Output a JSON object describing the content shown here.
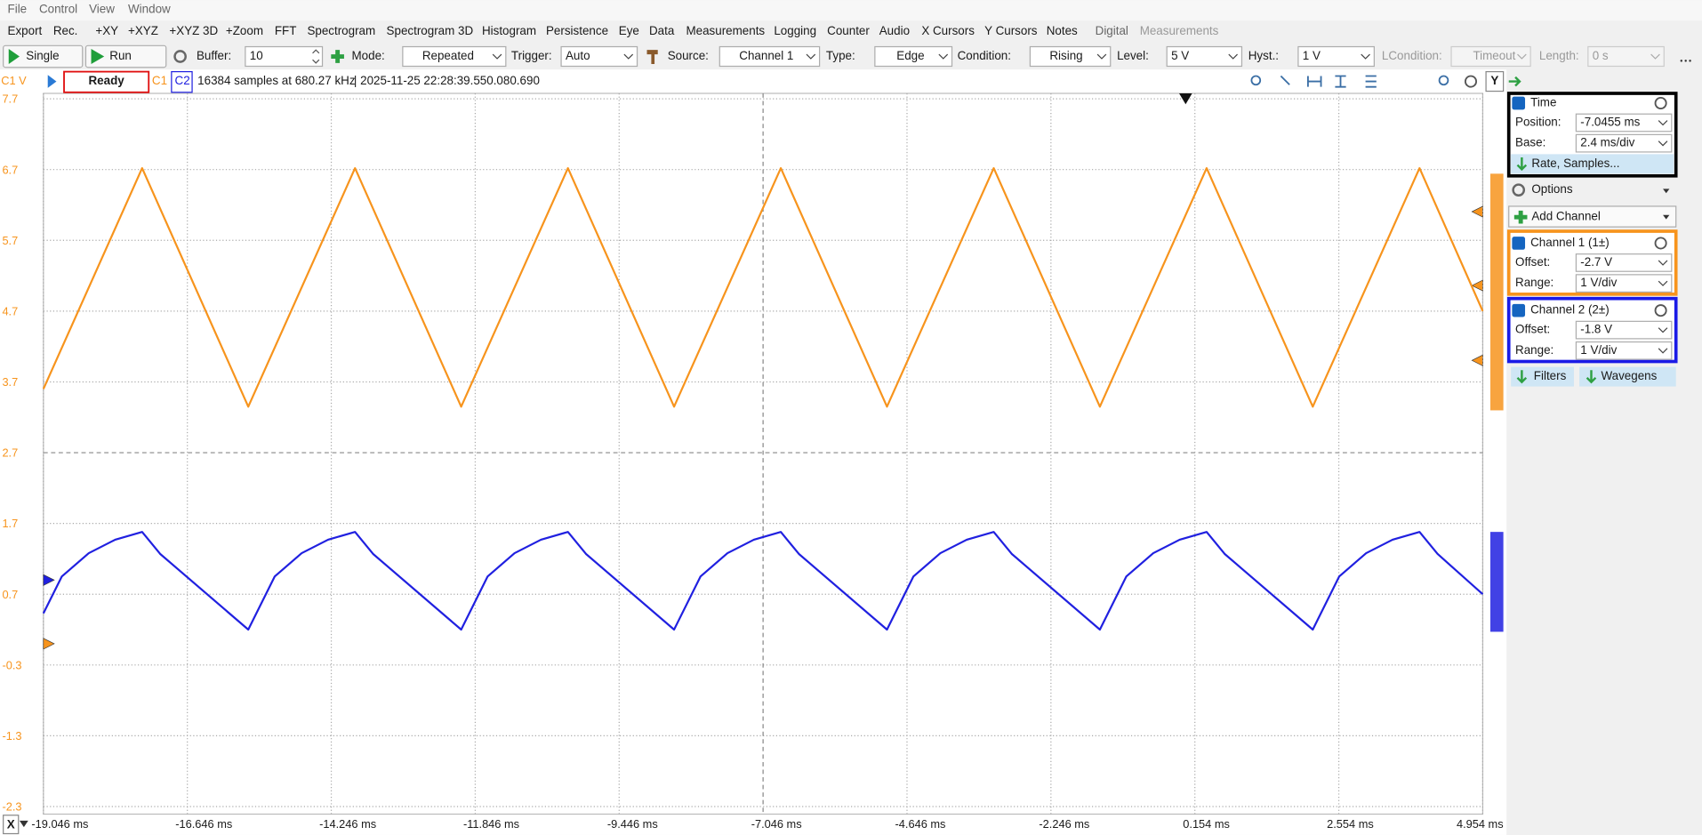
{
  "menu": [
    "File",
    "Control",
    "View",
    "Window"
  ],
  "tools": [
    "Export",
    "Rec.",
    "+XY",
    "+XYZ",
    "+XYZ 3D",
    "+Zoom",
    "FFT",
    "Spectrogram",
    "Spectrogram 3D",
    "Histogram",
    "Persistence",
    "Eye",
    "Data",
    "Measurements",
    "Logging",
    "Counter",
    "Audio",
    "X Cursors",
    "Y Cursors",
    "Notes",
    "Digital",
    "Measurements"
  ],
  "controls": {
    "single": "Single",
    "run": "Run",
    "buffer_label": "Buffer:",
    "buffer": "10",
    "mode_label": "Mode:",
    "mode": "Repeated",
    "trigger_label": "Trigger:",
    "trigger": "Auto",
    "source_label": "Source:",
    "source": "Channel 1",
    "type_label": "Type:",
    "type": "Edge",
    "condition_label": "Condition:",
    "condition": "Rising",
    "level_label": "Level:",
    "level": "5 V",
    "hyst_label": "Hyst.:",
    "hyst": "1 V",
    "lcondition_label": "LCondition:",
    "lcondition": "Timeout",
    "length_label": "Length:",
    "length": "0 s"
  },
  "status": {
    "state": "Ready",
    "samples": "16384 samples at 680.27 kHz",
    "timestamp": "| 2025-11-25 22:28:39.550.080.690",
    "y_button": "Y",
    "x_button": "X"
  },
  "panel": {
    "time": {
      "title": "Time",
      "position_label": "Position:",
      "position": "-7.0455 ms",
      "base_label": "Base:",
      "base": "2.4 ms/div",
      "rate": "Rate, Samples..."
    },
    "options": "Options",
    "add_channel": "Add Channel",
    "channels": [
      {
        "title": "Channel 1 (1±)",
        "offset_label": "Offset:",
        "offset": "-2.7 V",
        "range_label": "Range:",
        "range": "1 V/div"
      },
      {
        "title": "Channel 2 (2±)",
        "offset_label": "Offset:",
        "offset": "-1.8 V",
        "range_label": "Range:",
        "range": "1 V/div"
      }
    ],
    "filters": "Filters",
    "wavegens": "Wavegens"
  },
  "chart_data": {
    "type": "line",
    "y_label": "C1 V",
    "xlim": [
      -19.046,
      4.954
    ],
    "xticks": [
      {
        "value": -19.046,
        "label": "-19.046 ms"
      },
      {
        "value": -16.646,
        "label": "-16.646 ms"
      },
      {
        "value": -14.246,
        "label": "-14.246 ms"
      },
      {
        "value": -11.846,
        "label": "-11.846 ms"
      },
      {
        "value": -9.446,
        "label": "-9.446 ms"
      },
      {
        "value": -7.046,
        "label": "-7.046 ms"
      },
      {
        "value": -4.646,
        "label": "-4.646 ms"
      },
      {
        "value": -2.246,
        "label": "-2.246 ms"
      },
      {
        "value": 0.154,
        "label": "0.154 ms"
      },
      {
        "value": 2.554,
        "label": "2.554 ms"
      },
      {
        "value": 4.954,
        "label": "4.954 ms"
      }
    ],
    "ylim": [
      -2.3,
      7.7
    ],
    "yticks": [
      7.7,
      6.7,
      5.7,
      4.7,
      3.7,
      2.7,
      1.7,
      0.7,
      -0.3,
      -1.3,
      -2.3
    ],
    "y2lim": [
      -3.2,
      6.8
    ],
    "grid": true,
    "series": [
      {
        "name": "C1",
        "color": "#f7941d",
        "x": [
          -19.046,
          -17.4,
          -15.63,
          -13.85,
          -12.08,
          -10.3,
          -8.53,
          -6.75,
          -4.98,
          -3.2,
          -1.43,
          0.35,
          2.12,
          3.9,
          4.954
        ],
        "values": [
          3.6,
          6.72,
          3.35,
          6.72,
          3.35,
          6.72,
          3.35,
          6.72,
          3.35,
          6.72,
          3.35,
          6.72,
          3.35,
          6.72,
          4.7
        ]
      },
      {
        "name": "C2",
        "color": "#2020e0",
        "axis": "y2",
        "x": [
          -19.046,
          -18.74,
          -18.29,
          -17.85,
          -17.4,
          -17.1,
          -15.63,
          -15.19,
          -14.74,
          -14.3,
          -13.85,
          -13.55,
          -12.08,
          -11.64,
          -11.19,
          -10.75,
          -10.3,
          -10.0,
          -8.53,
          -8.09,
          -7.64,
          -7.2,
          -6.75,
          -6.45,
          -4.98,
          -4.54,
          -4.09,
          -3.65,
          -3.2,
          -2.9,
          -1.43,
          -0.99,
          -0.54,
          -0.1,
          0.35,
          0.65,
          2.12,
          2.56,
          3.01,
          3.45,
          3.9,
          4.2,
          4.954
        ],
        "values": [
          -0.47,
          0.05,
          0.38,
          0.57,
          0.68,
          0.37,
          -0.7,
          0.05,
          0.38,
          0.57,
          0.68,
          0.37,
          -0.7,
          0.05,
          0.38,
          0.57,
          0.68,
          0.37,
          -0.7,
          0.05,
          0.38,
          0.57,
          0.68,
          0.37,
          -0.7,
          0.05,
          0.38,
          0.57,
          0.68,
          0.37,
          -0.7,
          0.05,
          0.38,
          0.57,
          0.68,
          0.37,
          -0.7,
          0.05,
          0.38,
          0.57,
          0.68,
          0.37,
          -0.2
        ]
      }
    ]
  }
}
